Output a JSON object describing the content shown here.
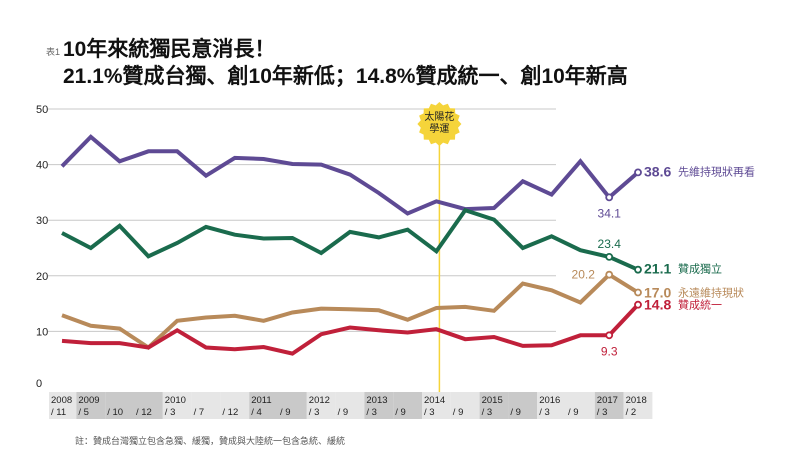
{
  "header": {
    "tag": "表1",
    "title": "10年來統獨民意消長！",
    "subtitle": "21.1%贊成台獨、創10年新低；14.8%贊成統一、創10年新高"
  },
  "note": "註：贊成台灣獨立包含急獨、緩獨，贊成與大陸統一包含急統、緩統",
  "chart_data": {
    "type": "line",
    "ylim": [
      0,
      50
    ],
    "yticks": [
      "0",
      "10",
      "20",
      "30",
      "40",
      "50"
    ],
    "grid": true,
    "categories": [
      {
        "year": "2008",
        "month": "/ 11"
      },
      {
        "year": "2009",
        "month": "/ 5"
      },
      {
        "year": "",
        "month": "/ 10"
      },
      {
        "year": "",
        "month": "/ 12"
      },
      {
        "year": "2010",
        "month": "/ 3"
      },
      {
        "year": "",
        "month": "/ 7"
      },
      {
        "year": "",
        "month": "/ 12"
      },
      {
        "year": "2011",
        "month": "/ 4"
      },
      {
        "year": "",
        "month": "/ 9"
      },
      {
        "year": "2012",
        "month": "/ 3"
      },
      {
        "year": "",
        "month": "/ 9"
      },
      {
        "year": "2013",
        "month": "/ 3"
      },
      {
        "year": "",
        "month": "/ 9"
      },
      {
        "year": "2014",
        "month": "/ 3"
      },
      {
        "year": "",
        "month": "/ 9"
      },
      {
        "year": "2015",
        "month": "/ 3"
      },
      {
        "year": "",
        "month": "/ 9"
      },
      {
        "year": "2016",
        "month": "/ 3"
      },
      {
        "year": "",
        "month": "/ 9"
      },
      {
        "year": "2017",
        "month": "/ 3"
      },
      {
        "year": "2018",
        "month": "/ 2"
      }
    ],
    "annotation": {
      "label_line1": "太陽花",
      "label_line2": "學運",
      "category_index": 13,
      "color": "#f5d43a"
    },
    "series": [
      {
        "name": "先維持現狀再看",
        "color": "#5e4a94",
        "end_label": "38.6",
        "prev_label": "34.1",
        "values": [
          39.7,
          45.0,
          40.6,
          42.4,
          42.4,
          38.0,
          41.2,
          41.0,
          40.1,
          40.0,
          38.2,
          34.9,
          31.2,
          33.4,
          32.0,
          32.2,
          37.0,
          34.6,
          40.6,
          34.1,
          38.6
        ]
      },
      {
        "name": "贊成獨立",
        "color": "#1a6b4d",
        "end_label": "21.1",
        "prev_label": "23.4",
        "values": [
          27.7,
          25.0,
          29.0,
          23.5,
          25.9,
          28.8,
          27.4,
          26.7,
          26.8,
          24.1,
          27.9,
          26.9,
          28.3,
          24.4,
          31.8,
          30.1,
          25.0,
          27.1,
          24.6,
          23.4,
          21.1
        ]
      },
      {
        "name": "永遠維持現狀",
        "color": "#b88a5a",
        "end_label": "17.0",
        "prev_label": "20.2",
        "values": [
          12.9,
          11.0,
          10.5,
          7.1,
          11.9,
          12.5,
          12.8,
          11.9,
          13.4,
          14.1,
          14.0,
          13.8,
          12.1,
          14.2,
          14.4,
          13.7,
          18.6,
          17.4,
          15.2,
          20.2,
          17.0
        ]
      },
      {
        "name": "贊成統一",
        "color": "#c0203a",
        "end_label": "14.8",
        "prev_label": "9.3",
        "values": [
          8.3,
          7.9,
          7.9,
          7.1,
          10.2,
          7.1,
          6.8,
          7.2,
          6.0,
          9.5,
          10.7,
          10.2,
          9.8,
          10.4,
          8.6,
          9.0,
          7.4,
          7.5,
          9.3,
          9.3,
          14.8
        ]
      }
    ]
  }
}
